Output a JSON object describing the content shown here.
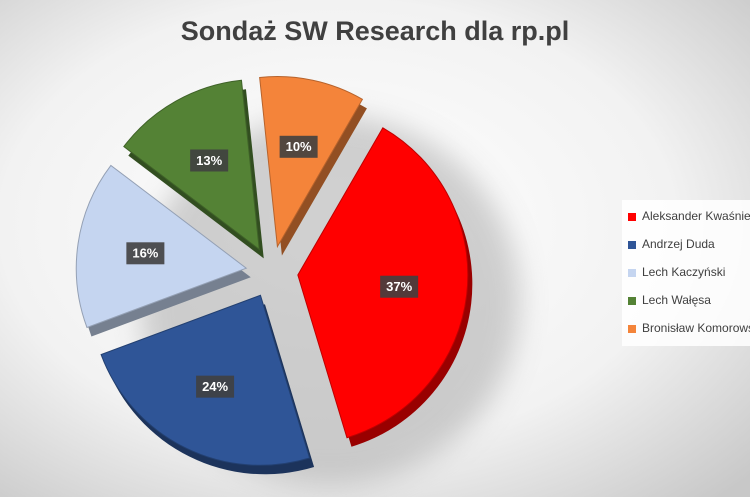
{
  "chart_data": {
    "type": "pie",
    "title": "Sondaż SW Research dla rp.pl",
    "categories": [
      "Aleksander Kwaśniewski",
      "Andrzej Duda",
      "Lech Kaczyński",
      "Lech Wałęsa",
      "Bronisław Komorowski"
    ],
    "values": [
      37,
      24,
      16,
      13,
      10
    ],
    "value_labels": [
      "37%",
      "24%",
      "16%",
      "13%",
      "10%"
    ],
    "colors": [
      "#ff0000",
      "#2f5597",
      "#c5d5f0",
      "#548235",
      "#f4843a"
    ],
    "legend": "right"
  }
}
